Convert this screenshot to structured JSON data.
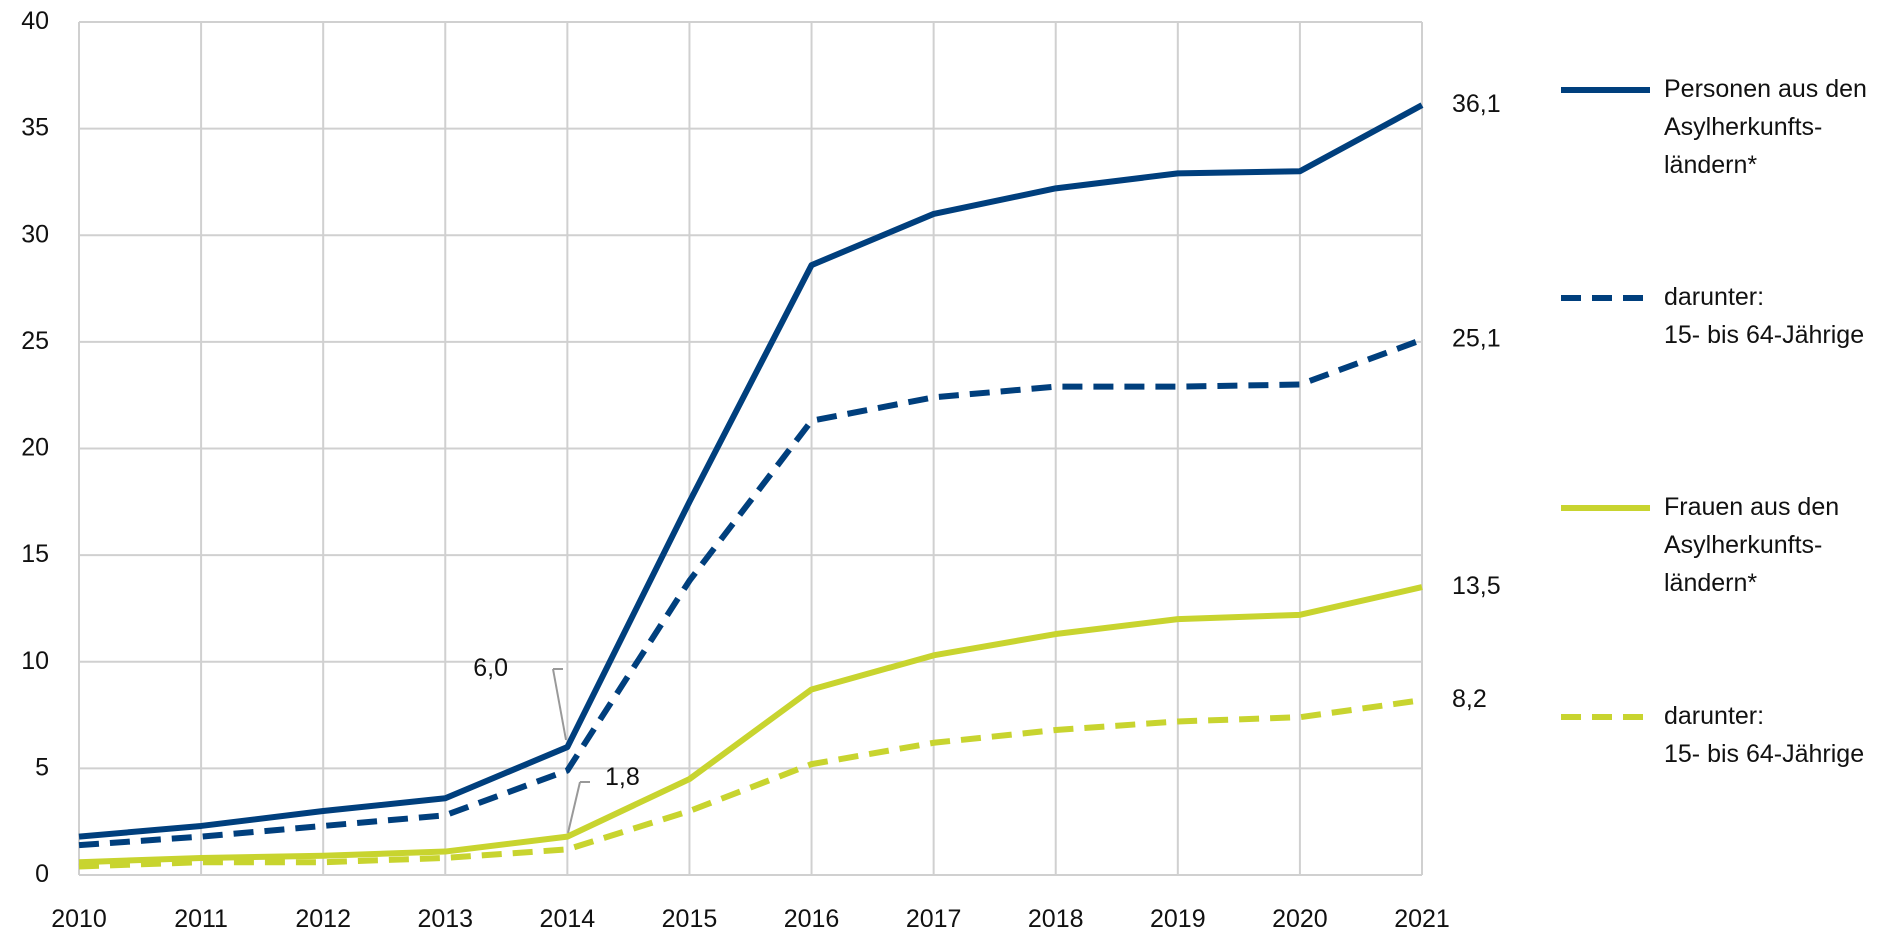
{
  "chart_data": {
    "type": "line",
    "categories": [
      "2010",
      "2011",
      "2012",
      "2013",
      "2014",
      "2015",
      "2016",
      "2017",
      "2018",
      "2019",
      "2020",
      "2021"
    ],
    "ylim": [
      0,
      40
    ],
    "yticks": [
      0,
      5,
      10,
      15,
      20,
      25,
      30,
      35,
      40
    ],
    "grid": true,
    "series": [
      {
        "name": "Personen aus den\nAsylherkunfts-\nländern*",
        "color": "#003f7d",
        "dashed": false,
        "values": [
          1.8,
          2.3,
          3.0,
          3.6,
          6.0,
          17.5,
          28.6,
          31.0,
          32.2,
          32.9,
          33.0,
          36.1
        ],
        "value_labels": [
          null,
          null,
          null,
          null,
          "6,0",
          null,
          null,
          null,
          null,
          null,
          null,
          "36,1"
        ]
      },
      {
        "name": "darunter:\n15- bis 64-Jährige",
        "color": "#003f7d",
        "dashed": true,
        "values": [
          1.4,
          1.8,
          2.3,
          2.8,
          4.9,
          13.8,
          21.3,
          22.4,
          22.9,
          22.9,
          23.0,
          25.1
        ],
        "value_labels": [
          null,
          null,
          null,
          null,
          null,
          null,
          null,
          null,
          null,
          null,
          null,
          "25,1"
        ]
      },
      {
        "name": "Frauen aus den\nAsylherkunfts-\nländern*",
        "color": "#c8d42f",
        "dashed": false,
        "values": [
          0.6,
          0.8,
          0.9,
          1.1,
          1.8,
          4.5,
          8.7,
          10.3,
          11.3,
          12.0,
          12.2,
          13.5
        ],
        "value_labels": [
          null,
          null,
          null,
          null,
          "1,8",
          null,
          null,
          null,
          null,
          null,
          null,
          "13,5"
        ]
      },
      {
        "name": "darunter:\n15- bis 64-Jährige",
        "color": "#c8d42f",
        "dashed": true,
        "values": [
          0.4,
          0.6,
          0.6,
          0.8,
          1.2,
          3.0,
          5.2,
          6.2,
          6.8,
          7.2,
          7.4,
          8.2
        ],
        "value_labels": [
          null,
          null,
          null,
          null,
          null,
          null,
          null,
          null,
          null,
          null,
          null,
          "8,2"
        ]
      }
    ]
  }
}
